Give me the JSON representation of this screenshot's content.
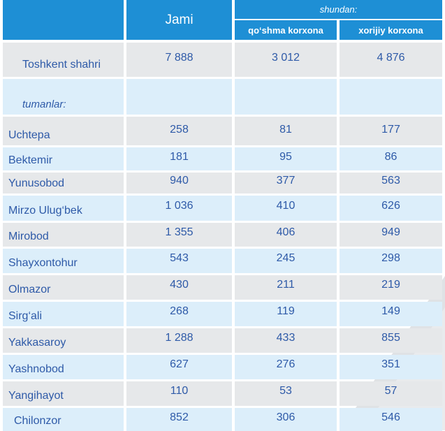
{
  "header": {
    "jami": "Jami",
    "shundan": "shundan:",
    "qoshma": "qo‘shma korxona",
    "xorijiy": "xorijiy korxona"
  },
  "city": {
    "name": "Toshkent shahri",
    "jami": "7 888",
    "qoshma": "3 012",
    "xorijiy": "4 876"
  },
  "districts_label": "tumanlar:",
  "rows": [
    {
      "name": "Uchtepa",
      "jami": "258",
      "qoshma": "81",
      "xorijiy": "177"
    },
    {
      "name": "Bektemir",
      "jami": "181",
      "qoshma": "95",
      "xorijiy": "86"
    },
    {
      "name": "Yunusobod",
      "jami": "940",
      "qoshma": "377",
      "xorijiy": "563"
    },
    {
      "name": "Mirzo Ulug‘bek",
      "jami": "1 036",
      "qoshma": "410",
      "xorijiy": "626"
    },
    {
      "name": "Mirobod",
      "jami": "1 355",
      "qoshma": "406",
      "xorijiy": "949"
    },
    {
      "name": "Shayxontohur",
      "jami": "543",
      "qoshma": "245",
      "xorijiy": "298"
    },
    {
      "name": "Olmazor",
      "jami": "430",
      "qoshma": "211",
      "xorijiy": "219"
    },
    {
      "name": "Sirg‘ali",
      "jami": "268",
      "qoshma": "119",
      "xorijiy": "149"
    },
    {
      "name": "Yakkasaroy",
      "jami": "1 288",
      "qoshma": "433",
      "xorijiy": "855"
    },
    {
      "name": "Yashnobod",
      "jami": "627",
      "qoshma": "276",
      "xorijiy": "351"
    },
    {
      "name": "Yangihayot",
      "jami": "110",
      "qoshma": "53",
      "xorijiy": "57"
    },
    {
      "name": "Chilonzor",
      "jami": "852",
      "qoshma": "306",
      "xorijiy": "546"
    }
  ],
  "colors": {
    "header": "#1e8fd5",
    "row_gray": "#e6e8ea",
    "row_blue": "#dceefa",
    "text": "#2e5aa8"
  }
}
